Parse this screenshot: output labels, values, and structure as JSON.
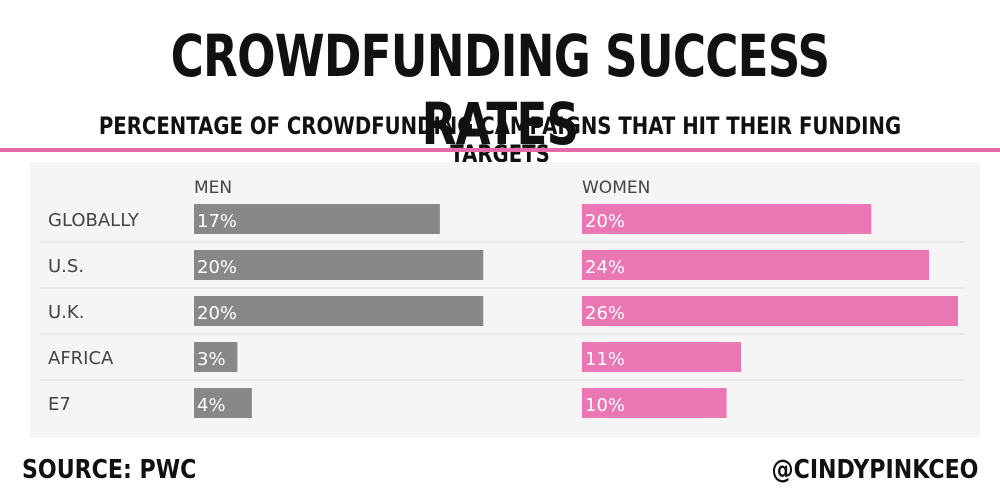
{
  "colors": {
    "men": "#888888",
    "women": "#ea77b3",
    "rule": "#e56aa9",
    "separator": "#dcdcdc",
    "bar_label": "#ffffff",
    "axis_text": "#444444"
  },
  "source": "SOURCE: PWC",
  "handle": "@CINDYPINKCEO",
  "chart_data": {
    "type": "bar",
    "title": "CROWDFUNDING SUCCESS RATES",
    "subtitle": "PERCENTAGE OF CROWDFUNDING CAMPAIGNS THAT HIT THEIR FUNDING TARGETS",
    "categories": [
      "GLOBALLY",
      "U.S.",
      "U.K.",
      "AFRICA",
      "E7"
    ],
    "series": [
      {
        "name": "MEN",
        "values": [
          17,
          20,
          20,
          3,
          4
        ],
        "labels": [
          "17%",
          "20%",
          "20%",
          "3%",
          "4%"
        ]
      },
      {
        "name": "WOMEN",
        "values": [
          20,
          24,
          26,
          11,
          10
        ],
        "labels": [
          "20%",
          "24%",
          "26%",
          "11%",
          "10%"
        ]
      }
    ],
    "xlim": [
      0,
      26
    ],
    "unit": "%"
  }
}
